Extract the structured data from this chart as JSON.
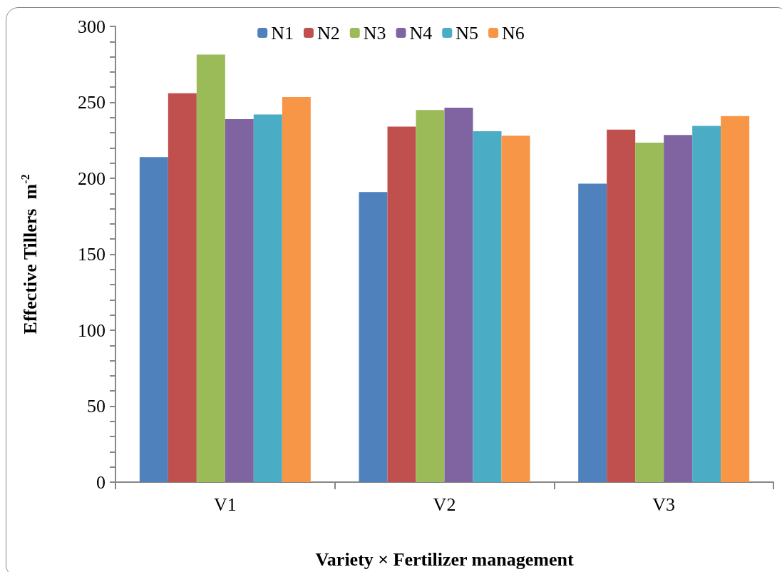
{
  "chart_data": {
    "type": "bar",
    "xlabel": "Variety × Fertilizer management",
    "ylabel": "Effective Tillers  m$^{-2}$",
    "categories": [
      "V1",
      "V2",
      "V3"
    ],
    "series": [
      {
        "name": "N1",
        "color": "#4f81bd",
        "values": [
          214,
          191,
          196.5
        ]
      },
      {
        "name": "N2",
        "color": "#c0504d",
        "values": [
          256,
          234,
          232
        ]
      },
      {
        "name": "N3",
        "color": "#9bbb59",
        "values": [
          281.5,
          245,
          223.5
        ]
      },
      {
        "name": "N4",
        "color": "#8064a2",
        "values": [
          239,
          246.5,
          228.5
        ]
      },
      {
        "name": "N5",
        "color": "#4bacc6",
        "values": [
          242,
          231,
          234.5
        ]
      },
      {
        "name": "N6",
        "color": "#f79646",
        "values": [
          253.5,
          228,
          241
        ]
      }
    ],
    "ylim": [
      0,
      300
    ],
    "yticks": [
      0,
      {
        "value": 10,
        "label": null
      },
      {
        "value": 20,
        "label": null
      },
      {
        "value": 30,
        "label": null
      },
      {
        "value": 40,
        "label": null
      },
      50,
      {
        "value": 60,
        "label": null
      },
      {
        "value": 70,
        "label": null
      },
      {
        "value": 80,
        "label": null
      },
      {
        "value": 90,
        "label": null
      },
      100,
      {
        "value": 110,
        "label": null
      },
      {
        "value": 120,
        "label": null
      },
      {
        "value": 130,
        "label": null
      },
      {
        "value": 140,
        "label": null
      },
      150,
      {
        "value": 160,
        "label": null
      },
      {
        "value": 170,
        "label": null
      },
      {
        "value": 180,
        "label": null
      },
      {
        "value": 190,
        "label": null
      },
      200,
      {
        "value": 210,
        "label": null
      },
      {
        "value": 220,
        "label": null
      },
      {
        "value": 230,
        "label": null
      },
      {
        "value": 240,
        "label": null
      },
      250,
      {
        "value": 260,
        "label": null
      },
      {
        "value": 270,
        "label": null
      },
      {
        "value": 280,
        "label": null
      },
      {
        "value": 290,
        "label": null
      },
      300
    ],
    "grid": false,
    "legend": "top"
  }
}
